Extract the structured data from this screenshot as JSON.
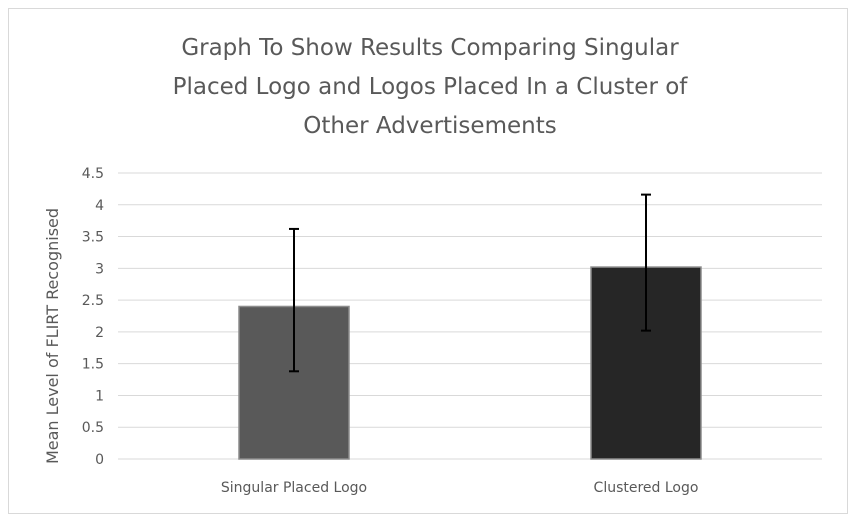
{
  "chart_data": {
    "type": "bar",
    "title_lines": [
      "Graph To Show Results Comparing Singular",
      "Placed Logo and Logos Placed In a Cluster of",
      "Other Advertisements"
    ],
    "ylabel": "Mean Level of FLIRT Recognised",
    "xlabel": "",
    "categories": [
      "Singular Placed Logo",
      "Clustered Logo"
    ],
    "values": [
      2.4,
      3.02
    ],
    "error_low": [
      1.38,
      2.02
    ],
    "error_high": [
      3.62,
      4.16
    ],
    "ylim": [
      0,
      4.5
    ],
    "yticks": [
      "0",
      "0.5",
      "1",
      "1.5",
      "2",
      "2.5",
      "3",
      "3.5",
      "4",
      "4.5"
    ],
    "bar_colors": [
      "#595959",
      "#262626"
    ],
    "grid": true
  }
}
